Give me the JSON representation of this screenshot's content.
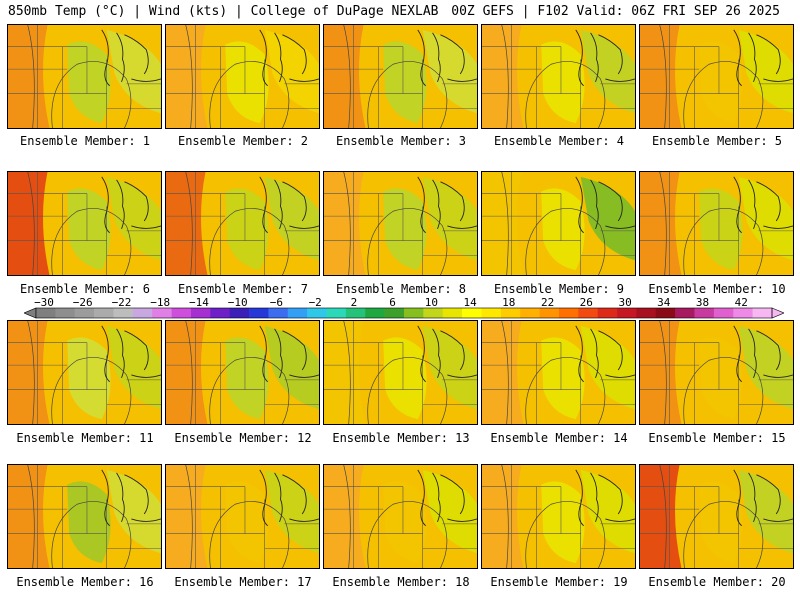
{
  "header": {
    "left": "850mb Temp (°C) | Wind (kts) | College of DuPage NEXLAB",
    "right": "00Z GEFS | F102 Valid: 06Z FRI SEP 26 2025"
  },
  "members": [
    "Ensemble Member: 1",
    "Ensemble Member: 2",
    "Ensemble Member: 3",
    "Ensemble Member: 4",
    "Ensemble Member: 5",
    "Ensemble Member: 6",
    "Ensemble Member: 7",
    "Ensemble Member: 8",
    "Ensemble Member: 9",
    "Ensemble Member: 10",
    "Ensemble Member: 11",
    "Ensemble Member: 12",
    "Ensemble Member: 13",
    "Ensemble Member: 14",
    "Ensemble Member: 15",
    "Ensemble Member: 16",
    "Ensemble Member: 17",
    "Ensemble Member: 18",
    "Ensemble Member: 19",
    "Ensemble Member: 20"
  ],
  "colorbar": {
    "ticks": [
      "−30",
      "−26",
      "−22",
      "−18",
      "−14",
      "−10",
      "−6",
      "−2",
      "2",
      "6",
      "10",
      "14",
      "18",
      "22",
      "26",
      "30",
      "34",
      "38",
      "42"
    ],
    "colors": [
      "#7f7f7f",
      "#8e8e8e",
      "#9c9c9c",
      "#ababab",
      "#bdbdbd",
      "#c9a7e0",
      "#e07fe6",
      "#cf4fdd",
      "#a52fd0",
      "#6e20c8",
      "#3a1fb8",
      "#2639d8",
      "#3c6cf0",
      "#33a0f5",
      "#2fc8e8",
      "#2bd8b8",
      "#25c27a",
      "#1fa83f",
      "#3da02a",
      "#85bf20",
      "#c2d61a",
      "#e8e600",
      "#ffff00",
      "#ffe800",
      "#ffcc00",
      "#ffb000",
      "#ff9400",
      "#ff7000",
      "#f24a10",
      "#dd2a18",
      "#c51822",
      "#a80f1f",
      "#8a0a18",
      "#a81a60",
      "#c93aa0",
      "#e060d0",
      "#ee8ae6",
      "#f7b7f2"
    ]
  }
}
